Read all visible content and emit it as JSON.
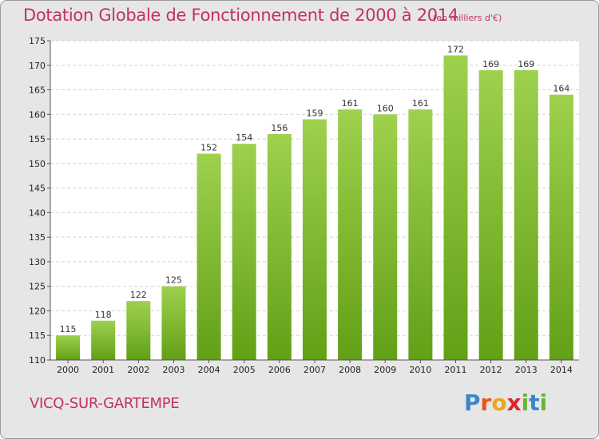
{
  "header": {
    "title": "Dotation Globale de Fonctionnement de 2000 à 2014",
    "subtitle": "(en milliers d'€)"
  },
  "footer": {
    "commune": "VICQ-SUR-GARTEMPE",
    "logo_letters": [
      "P",
      "r",
      "o",
      "x",
      "i",
      "t",
      "i"
    ],
    "logo_colors": [
      "#3b86c8",
      "#e8551d",
      "#e9a81c",
      "#d8262f",
      "#6ab536",
      "#3b86c8",
      "#6ab536"
    ]
  },
  "chart_data": {
    "type": "bar",
    "title": "Dotation Globale de Fonctionnement de 2000 à 2014",
    "subtitle": "(en milliers d'€)",
    "categories": [
      "2000",
      "2001",
      "2002",
      "2003",
      "2004",
      "2005",
      "2006",
      "2007",
      "2008",
      "2009",
      "2010",
      "2011",
      "2012",
      "2013",
      "2014"
    ],
    "values": [
      115,
      118,
      122,
      125,
      152,
      154,
      156,
      159,
      161,
      160,
      161,
      172,
      169,
      169,
      164
    ],
    "ylim": [
      110,
      175
    ],
    "yticks": [
      110,
      115,
      120,
      125,
      130,
      135,
      140,
      145,
      150,
      155,
      160,
      165,
      170,
      175
    ],
    "grid": true,
    "bar_color_top": "#9ed14e",
    "bar_color_bottom": "#62a016"
  }
}
